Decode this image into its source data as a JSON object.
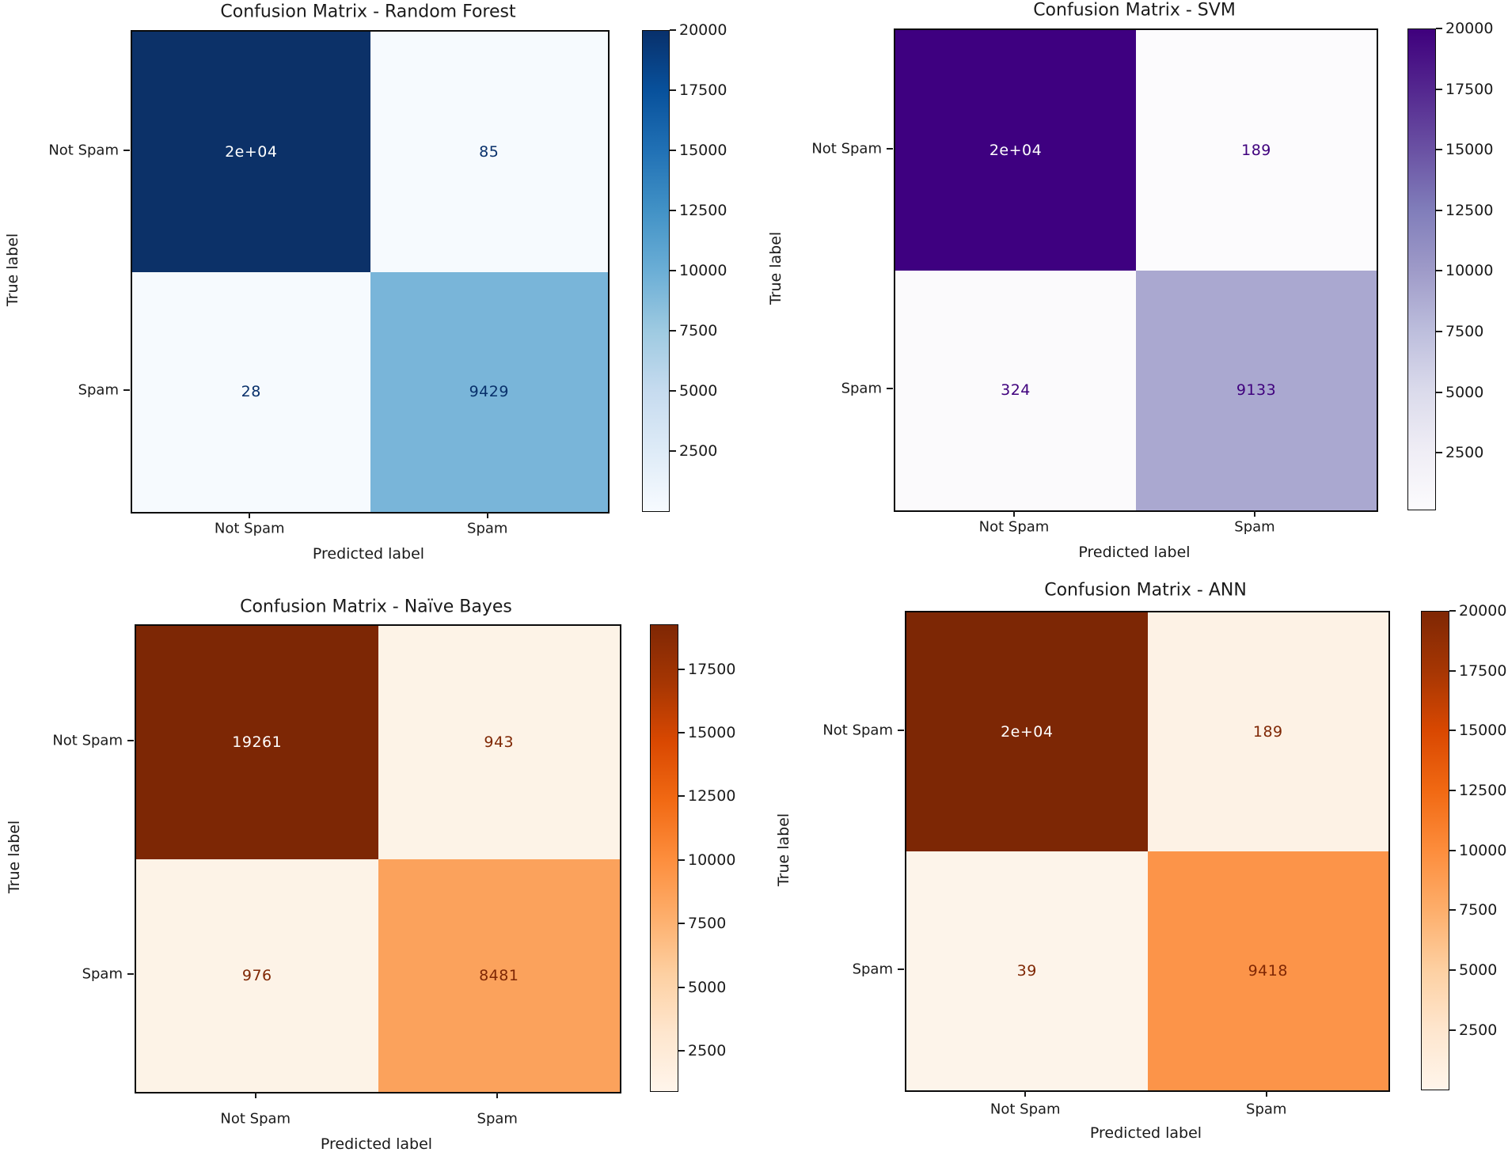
{
  "figure": {
    "background": "#ffffff",
    "description": "2x2 grid of confusion matrix heatmaps comparing four spam classifiers"
  },
  "chart_data": [
    {
      "type": "heatmap",
      "title": "Confusion Matrix - Random Forest",
      "xlabel": "Predicted label",
      "ylabel": "True label",
      "x_ticklabels": [
        "Not Spam",
        "Spam"
      ],
      "y_ticklabels": [
        "Not Spam",
        "Spam"
      ],
      "matrix": [
        [
          20000,
          85
        ],
        [
          28,
          9429
        ]
      ],
      "cell_labels": [
        [
          "2e+04",
          "85"
        ],
        [
          "28",
          "9429"
        ]
      ],
      "colormap": "Blues",
      "vmin": 28,
      "vmax": 20000,
      "colorbar_ticks": [
        20000,
        17500,
        15000,
        12500,
        10000,
        7500,
        5000,
        2500
      ],
      "cell_colors": [
        [
          "#0c3168",
          "#f6fafe"
        ],
        [
          "#f6fafe",
          "#79b5d9"
        ]
      ],
      "cell_text_colors": [
        [
          "#ffffff",
          "#08306b"
        ],
        [
          "#08306b",
          "#08306b"
        ]
      ],
      "cmap_stops": [
        "#08306b",
        "#08519c",
        "#2171b5",
        "#4292c6",
        "#6baed6",
        "#9ecae1",
        "#c6dbef",
        "#deebf7",
        "#f7fbff"
      ]
    },
    {
      "type": "heatmap",
      "title": "Confusion Matrix - SVM",
      "xlabel": "Predicted label",
      "ylabel": "True label",
      "x_ticklabels": [
        "Not Spam",
        "Spam"
      ],
      "y_ticklabels": [
        "Not Spam",
        "Spam"
      ],
      "matrix": [
        [
          20000,
          189
        ],
        [
          324,
          9133
        ]
      ],
      "cell_labels": [
        [
          "2e+04",
          "189"
        ],
        [
          "324",
          "9133"
        ]
      ],
      "colormap": "Purples",
      "vmin": 189,
      "vmax": 20000,
      "colorbar_ticks": [
        20000,
        17500,
        15000,
        12500,
        10000,
        7500,
        5000,
        2500
      ],
      "cell_colors": [
        [
          "#3e0080",
          "#fcfbfd"
        ],
        [
          "#fbfafc",
          "#aaa8d0"
        ]
      ],
      "cell_text_colors": [
        [
          "#ffffff",
          "#3f007d"
        ],
        [
          "#3f007d",
          "#3f007d"
        ]
      ],
      "cmap_stops": [
        "#3f007d",
        "#54278f",
        "#6a51a3",
        "#807dba",
        "#9e9ac8",
        "#bcbddc",
        "#dadaeb",
        "#efedf5",
        "#fcfbfd"
      ]
    },
    {
      "type": "heatmap",
      "title": "Confusion Matrix - Naïve Bayes",
      "xlabel": "Predicted label",
      "ylabel": "True label",
      "x_ticklabels": [
        "Not Spam",
        "Spam"
      ],
      "y_ticklabels": [
        "Not Spam",
        "Spam"
      ],
      "matrix": [
        [
          19261,
          943
        ],
        [
          976,
          8481
        ]
      ],
      "cell_labels": [
        [
          "19261",
          "943"
        ],
        [
          "976",
          "8481"
        ]
      ],
      "colormap": "Oranges",
      "vmin": 943,
      "vmax": 19261,
      "colorbar_ticks": [
        17500,
        15000,
        12500,
        10000,
        7500,
        5000,
        2500
      ],
      "cell_colors": [
        [
          "#7d2705",
          "#fdf3e7"
        ],
        [
          "#fdf3e7",
          "#fba25c"
        ]
      ],
      "cell_text_colors": [
        [
          "#ffffff",
          "#7f2704"
        ],
        [
          "#7f2704",
          "#7f2704"
        ]
      ],
      "cmap_stops": [
        "#7f2704",
        "#a63603",
        "#d94801",
        "#f16913",
        "#fd8d3c",
        "#fdae6b",
        "#fdd0a2",
        "#fee6ce",
        "#fff5eb"
      ]
    },
    {
      "type": "heatmap",
      "title": "Confusion Matrix - ANN",
      "xlabel": "Predicted label",
      "ylabel": "True label",
      "x_ticklabels": [
        "Not Spam",
        "Spam"
      ],
      "y_ticklabels": [
        "Not Spam",
        "Spam"
      ],
      "matrix": [
        [
          20000,
          189
        ],
        [
          39,
          9418
        ]
      ],
      "cell_labels": [
        [
          "2e+04",
          "189"
        ],
        [
          "39",
          "9418"
        ]
      ],
      "colormap": "Oranges",
      "vmin": 39,
      "vmax": 20000,
      "colorbar_ticks": [
        20000,
        17500,
        15000,
        12500,
        10000,
        7500,
        5000,
        2500
      ],
      "cell_colors": [
        [
          "#7d2705",
          "#fdf2e5"
        ],
        [
          "#fdf4ea",
          "#fc9449"
        ]
      ],
      "cell_text_colors": [
        [
          "#ffffff",
          "#7f2704"
        ],
        [
          "#7f2704",
          "#7f2704"
        ]
      ],
      "cmap_stops": [
        "#7f2704",
        "#a63603",
        "#d94801",
        "#f16913",
        "#fd8d3c",
        "#fdae6b",
        "#fdd0a2",
        "#fee6ce",
        "#fff5eb"
      ]
    }
  ]
}
